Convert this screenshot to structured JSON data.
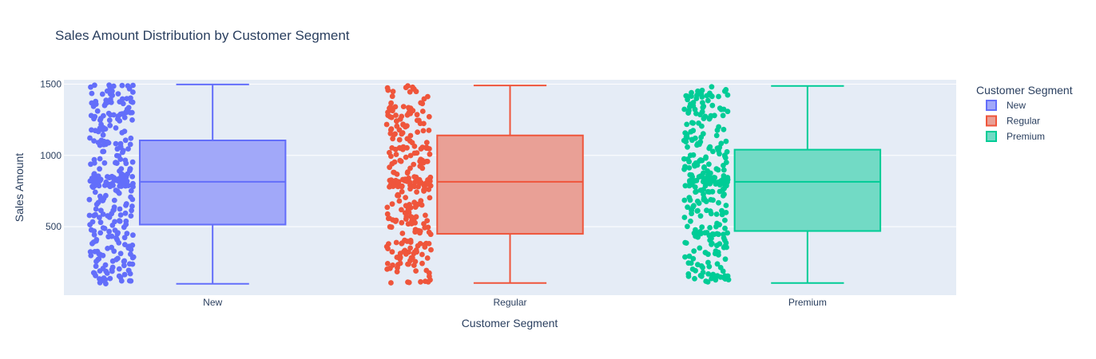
{
  "chart_data": {
    "type": "box",
    "title": "Sales Amount Distribution by Customer Segment",
    "xlabel": "Customer Segment",
    "ylabel": "Sales Amount",
    "categories": [
      "New",
      "Regular",
      "Premium"
    ],
    "y_ticks": [
      500,
      1000,
      1500
    ],
    "ylim": [
      20,
      1530
    ],
    "grid": true,
    "legend": {
      "title": "Customer Segment",
      "placement": "top-right"
    },
    "series": [
      {
        "name": "New",
        "color": "#636efa",
        "fill": "#a1a8f9",
        "min": 100,
        "q1": 515,
        "median": 815,
        "q3": 1105,
        "max": 1497,
        "points_shown": "all",
        "point_count": 300
      },
      {
        "name": "Regular",
        "color": "#ef553b",
        "fill": "#e9a096",
        "min": 105,
        "q1": 450,
        "median": 815,
        "q3": 1140,
        "max": 1490,
        "points_shown": "all",
        "point_count": 280
      },
      {
        "name": "Premium",
        "color": "#00cc96",
        "fill": "#72dac5",
        "min": 105,
        "q1": 470,
        "median": 815,
        "q3": 1040,
        "max": 1487,
        "points_shown": "all",
        "point_count": 290
      }
    ]
  }
}
